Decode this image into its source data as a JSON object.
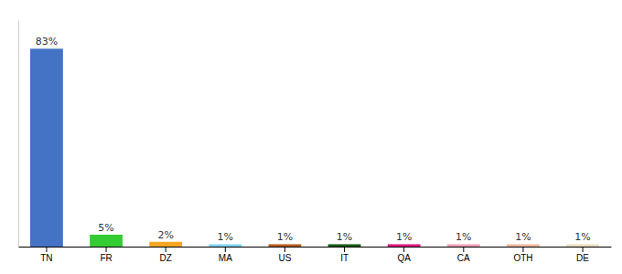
{
  "chart_data": {
    "type": "bar",
    "categories": [
      "TN",
      "FR",
      "DZ",
      "MA",
      "US",
      "IT",
      "QA",
      "CA",
      "OTH",
      "DE"
    ],
    "values": [
      83,
      5,
      2,
      1,
      1,
      1,
      1,
      1,
      1,
      1
    ],
    "value_labels": [
      "83%",
      "5%",
      "2%",
      "1%",
      "1%",
      "1%",
      "1%",
      "1%",
      "1%",
      "1%"
    ],
    "colors": [
      "#4472c4",
      "#33cc33",
      "#f5a623",
      "#82d4f0",
      "#b85c20",
      "#1a5c1a",
      "#e0197d",
      "#f0a0b8",
      "#f0b8a0",
      "#e8e0c0"
    ],
    "ylim": [
      0,
      95
    ],
    "data_labels": true,
    "tick_labels": "x",
    "grid": false
  }
}
